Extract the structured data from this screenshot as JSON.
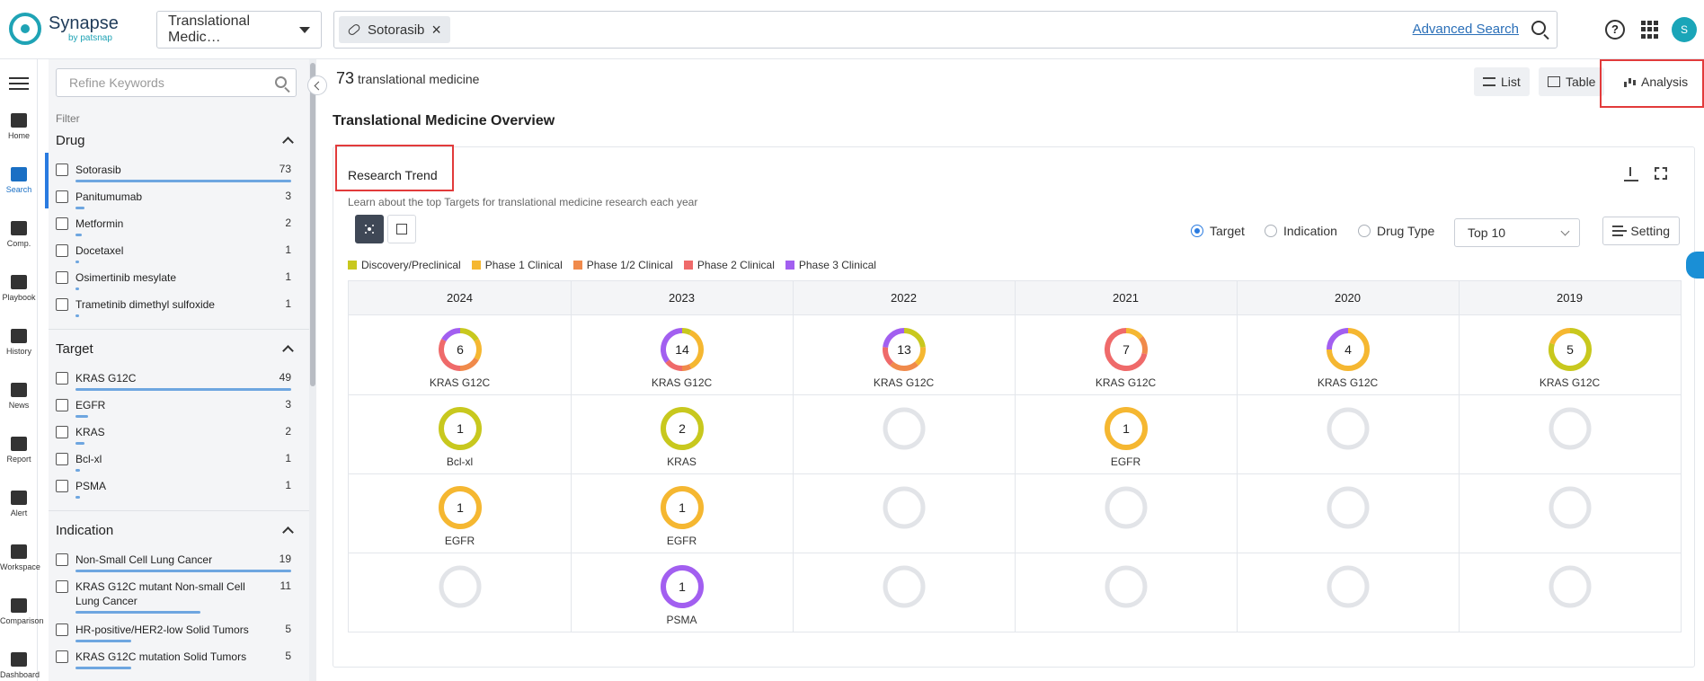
{
  "header": {
    "logo_name": "Synapse",
    "logo_sub": "by patsnap",
    "database": "Translational Medic…",
    "search_chip": "Sotorasib",
    "advanced_search": "Advanced Search",
    "help": "?",
    "avatar": "S"
  },
  "leftnav": {
    "items": [
      {
        "label": "Home",
        "icon": "home-icon"
      },
      {
        "label": "Search",
        "icon": "search-icon"
      },
      {
        "label": "Comp.",
        "icon": "compound-icon"
      },
      {
        "label": "Playbook",
        "icon": "playbook-icon"
      },
      {
        "label": "History",
        "icon": "history-icon"
      },
      {
        "label": "News",
        "icon": "news-icon"
      },
      {
        "label": "Report",
        "icon": "report-icon"
      },
      {
        "label": "Alert",
        "icon": "alert-icon"
      },
      {
        "label": "Workspace",
        "icon": "workspace-icon"
      },
      {
        "label": "Comparison",
        "icon": "comparison-icon"
      },
      {
        "label": "Dashboard",
        "icon": "dashboard-icon"
      }
    ]
  },
  "filter": {
    "refine_placeholder": "Refine Keywords",
    "label": "Filter",
    "sections": [
      {
        "title": "Drug",
        "items": [
          {
            "label": "Sotorasib",
            "count": "73",
            "ratio": 1.0
          },
          {
            "label": "Panitumumab",
            "count": "3",
            "ratio": 0.04
          },
          {
            "label": "Metformin",
            "count": "2",
            "ratio": 0.03
          },
          {
            "label": "Docetaxel",
            "count": "1",
            "ratio": 0.015
          },
          {
            "label": "Osimertinib mesylate",
            "count": "1",
            "ratio": 0.015
          },
          {
            "label": "Trametinib dimethyl sulfoxide",
            "count": "1",
            "ratio": 0.015
          }
        ]
      },
      {
        "title": "Target",
        "items": [
          {
            "label": "KRAS G12C",
            "count": "49",
            "ratio": 1.0
          },
          {
            "label": "EGFR",
            "count": "3",
            "ratio": 0.06
          },
          {
            "label": "KRAS",
            "count": "2",
            "ratio": 0.04
          },
          {
            "label": "Bcl-xl",
            "count": "1",
            "ratio": 0.02
          },
          {
            "label": "PSMA",
            "count": "1",
            "ratio": 0.02
          }
        ]
      },
      {
        "title": "Indication",
        "items": [
          {
            "label": "Non-Small Cell Lung Cancer",
            "count": "19",
            "ratio": 1.0
          },
          {
            "label": "KRAS G12C mutant Non-small Cell Lung Cancer",
            "count": "11",
            "ratio": 0.58
          },
          {
            "label": "HR-positive/HER2-low Solid Tumors",
            "count": "5",
            "ratio": 0.26
          },
          {
            "label": "KRAS G12C mutation Solid Tumors",
            "count": "5",
            "ratio": 0.26
          }
        ]
      }
    ]
  },
  "main": {
    "count": "73",
    "count_label": "translational medicine",
    "views": {
      "list": "List",
      "table": "Table",
      "analysis": "Analysis"
    },
    "overview_title": "Translational Medicine Overview",
    "card": {
      "title": "Research Trend",
      "subtitle": "Learn about the top Targets for translational medicine research each year",
      "radios": {
        "target": "Target",
        "indication": "Indication",
        "drug_type": "Drug Type"
      },
      "top_select": "Top 10",
      "setting": "Setting"
    }
  },
  "chart_data": {
    "type": "table",
    "legend": [
      {
        "name": "Discovery/Preclinical",
        "color": "#c8c81e"
      },
      {
        "name": "Phase 1 Clinical",
        "color": "#f5b731"
      },
      {
        "name": "Phase 1/2 Clinical",
        "color": "#f08a4b"
      },
      {
        "name": "Phase 2 Clinical",
        "color": "#ef6a6a"
      },
      {
        "name": "Phase 3 Clinical",
        "color": "#a25ff0"
      }
    ],
    "years": [
      "2024",
      "2023",
      "2022",
      "2021",
      "2020",
      "2019"
    ],
    "rows": [
      [
        {
          "target": "KRAS G12C",
          "total": 6,
          "segments": [
            {
              "phase": 0,
              "value": 1
            },
            {
              "phase": 1,
              "value": 1
            },
            {
              "phase": 2,
              "value": 1
            },
            {
              "phase": 3,
              "value": 2
            },
            {
              "phase": 4,
              "value": 1
            }
          ]
        },
        {
          "target": "KRAS G12C",
          "total": 14,
          "segments": [
            {
              "phase": 0,
              "value": 1
            },
            {
              "phase": 1,
              "value": 5
            },
            {
              "phase": 2,
              "value": 1
            },
            {
              "phase": 3,
              "value": 2
            },
            {
              "phase": 4,
              "value": 5
            }
          ]
        },
        {
          "target": "KRAS G12C",
          "total": 13,
          "segments": [
            {
              "phase": 0,
              "value": 3
            },
            {
              "phase": 1,
              "value": 2
            },
            {
              "phase": 2,
              "value": 3
            },
            {
              "phase": 3,
              "value": 2
            },
            {
              "phase": 4,
              "value": 3
            }
          ]
        },
        {
          "target": "KRAS G12C",
          "total": 7,
          "segments": [
            {
              "phase": 1,
              "value": 1
            },
            {
              "phase": 2,
              "value": 1
            },
            {
              "phase": 3,
              "value": 5
            }
          ]
        },
        {
          "target": "KRAS G12C",
          "total": 4,
          "segments": [
            {
              "phase": 1,
              "value": 3
            },
            {
              "phase": 4,
              "value": 1
            }
          ]
        },
        {
          "target": "KRAS G12C",
          "total": 5,
          "segments": [
            {
              "phase": 0,
              "value": 4
            },
            {
              "phase": 1,
              "value": 1
            }
          ]
        }
      ],
      [
        {
          "target": "Bcl-xl",
          "total": 1,
          "segments": [
            {
              "phase": 0,
              "value": 1
            }
          ]
        },
        {
          "target": "KRAS",
          "total": 2,
          "segments": [
            {
              "phase": 0,
              "value": 2
            }
          ]
        },
        null,
        {
          "target": "EGFR",
          "total": 1,
          "segments": [
            {
              "phase": 1,
              "value": 1
            }
          ]
        },
        null,
        null
      ],
      [
        {
          "target": "EGFR",
          "total": 1,
          "segments": [
            {
              "phase": 1,
              "value": 1
            }
          ]
        },
        {
          "target": "EGFR",
          "total": 1,
          "segments": [
            {
              "phase": 1,
              "value": 1
            }
          ]
        },
        null,
        null,
        null,
        null
      ],
      [
        null,
        {
          "target": "PSMA",
          "total": 1,
          "segments": [
            {
              "phase": 4,
              "value": 1
            }
          ]
        },
        null,
        null,
        null,
        null
      ]
    ]
  }
}
